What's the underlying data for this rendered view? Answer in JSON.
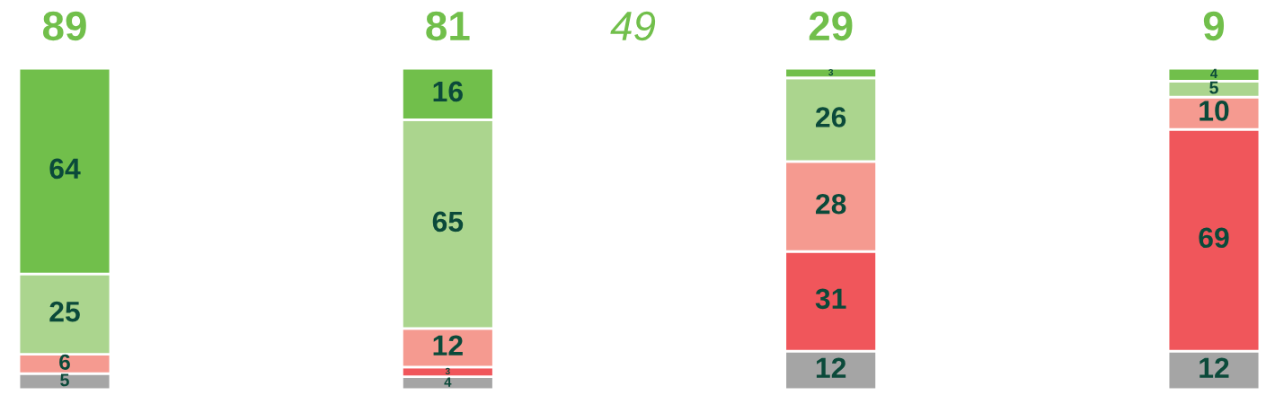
{
  "chart_data": {
    "type": "bar",
    "stacked": true,
    "categories": [
      null,
      null,
      null,
      null
    ],
    "series": [
      {
        "color": "#a5a5a5",
        "values": [
          5,
          4,
          12,
          12
        ]
      },
      {
        "color": "#f0565b",
        "values": [
          null,
          3,
          31,
          69
        ]
      },
      {
        "color": "#f59a90",
        "values": [
          6,
          12,
          28,
          10
        ]
      },
      {
        "color": "#abd58e",
        "values": [
          25,
          65,
          26,
          5
        ]
      },
      {
        "color": "#71bf4b",
        "values": [
          64,
          16,
          3,
          4
        ]
      }
    ],
    "data_labels": true,
    "annotations": [
      "89",
      "81",
      "29",
      "9",
      "49"
    ]
  }
}
